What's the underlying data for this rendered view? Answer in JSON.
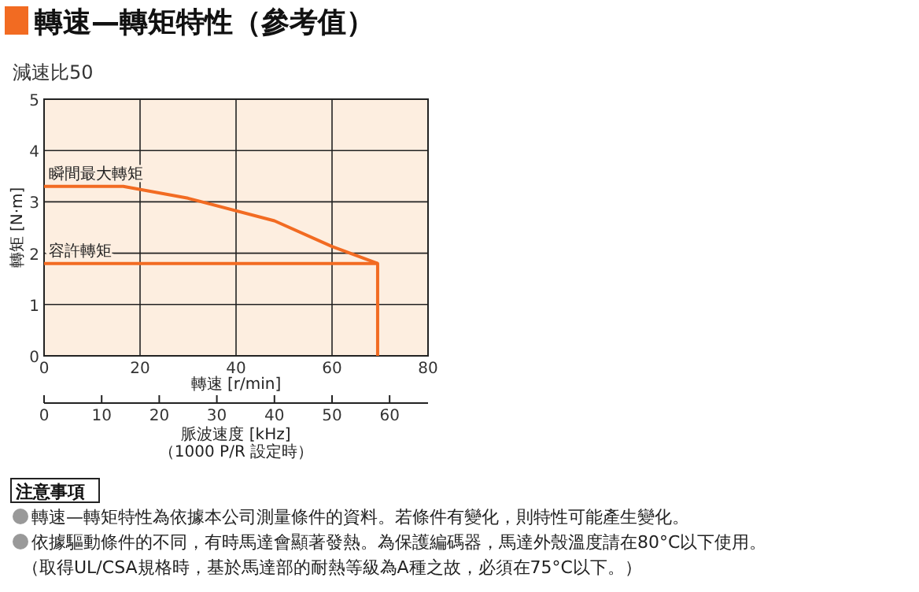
{
  "chart_data": {
    "type": "line",
    "title": "轉速—轉矩特性（參考值）",
    "subtitle": "減速比50",
    "xlabel": "轉速 [r/min]",
    "ylabel": "轉矩 [N·m]",
    "x2label": "脈波速度 [kHz]\n（1000 P/R 設定時）",
    "xlim": [
      0,
      80
    ],
    "xticks": [
      0,
      20,
      40,
      60,
      80
    ],
    "ylim": [
      0,
      5
    ],
    "yticks": [
      0,
      1,
      2,
      3,
      4,
      5
    ],
    "x2lim": [
      0,
      66.67
    ],
    "x2ticks": [
      0,
      10,
      20,
      30,
      40,
      50,
      60
    ],
    "grid": true,
    "line_style": "solid",
    "series": [
      {
        "name": "瞬間最大轉矩",
        "color": "#f26b22",
        "x": [
          0,
          16.5,
          30,
          48,
          60,
          69.5
        ],
        "values": [
          3.3,
          3.3,
          3.07,
          2.63,
          2.13,
          1.8
        ]
      },
      {
        "name": "容許轉矩",
        "color": "#f26b22",
        "x": [
          0,
          69.5,
          69.5
        ],
        "values": [
          1.8,
          1.8,
          0
        ]
      }
    ],
    "annotations": [
      "注意事項",
      "轉速—轉矩特性為依據本公司測量條件的資料。若條件有變化，則特性可能產生變化。",
      "依據驅動條件的不同，有時馬達會顯著發熱。為保護編碼器，馬達外殼溫度請在80°C以下使用。",
      "（取得UL/CSA規格時，基於馬達部的耐熱等級為A種之故，必須在75°C以下。）"
    ]
  }
}
